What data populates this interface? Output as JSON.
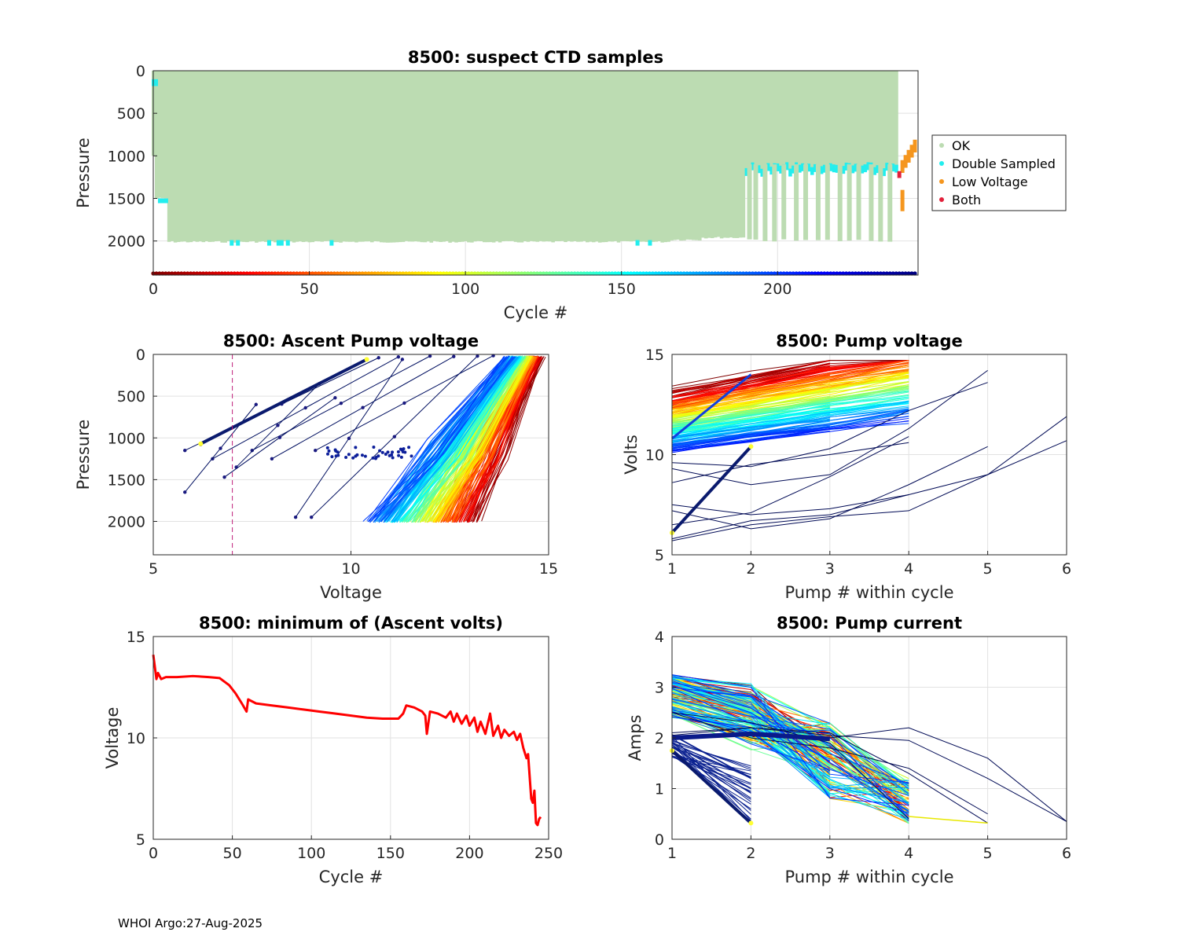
{
  "footer": "WHOI Argo:27-Aug-2025",
  "chart_data": [
    {
      "id": "ctd",
      "type": "scatter",
      "title": "8500: suspect CTD samples",
      "xlabel": "Cycle #",
      "ylabel": "Pressure",
      "xlim": [
        0,
        245
      ],
      "ylim": [
        2400,
        0
      ],
      "xticks": [
        0,
        50,
        100,
        150,
        200
      ],
      "yticks": [
        0,
        500,
        1000,
        1500,
        2000
      ],
      "legend": {
        "placement": "outside-right",
        "entries": [
          {
            "label": "OK",
            "color": "#bcdcb2"
          },
          {
            "label": "Double Sampled",
            "color": "#22eeee"
          },
          {
            "label": "Low Voltage",
            "color": "#f5961e"
          },
          {
            "label": "Both",
            "color": "#e2203a"
          }
        ]
      },
      "profile_depth": [
        {
          "from": 1,
          "to": 4,
          "value": 1500
        },
        {
          "from": 5,
          "to": 165,
          "value": 2010
        },
        {
          "from": 166,
          "to": 175,
          "value": 1985
        },
        {
          "from": 176,
          "to": 189,
          "value": 1960
        }
      ],
      "park_depth_after_190": 1150,
      "deep_profile_cycles": [
        191,
        193,
        196,
        199,
        202,
        206,
        209,
        213,
        216,
        220,
        223,
        226,
        230,
        233,
        236
      ],
      "low_voltage_cycles": [
        240,
        241,
        242,
        243,
        244
      ],
      "both_cycle": 239
    },
    {
      "id": "ascent",
      "type": "line",
      "title": "8500: Ascent Pump voltage",
      "xlabel": "Voltage",
      "ylabel": "Pressure",
      "xlim": [
        5,
        15
      ],
      "ylim": [
        2400,
        0
      ],
      "xticks": [
        5,
        10,
        15
      ],
      "yticks": [
        0,
        500,
        1000,
        1500,
        2000
      ],
      "low_voltage_threshold": 7,
      "bottom_voltage_range": [
        10.5,
        13.1
      ],
      "top_voltage_range": [
        14.0,
        14.8
      ]
    },
    {
      "id": "pumpv",
      "type": "line",
      "title": "8500: Pump voltage",
      "xlabel": "Pump # within cycle",
      "ylabel": "Volts",
      "xlim": [
        1,
        6
      ],
      "ylim": [
        5,
        15
      ],
      "xticks": [
        1,
        2,
        3,
        4,
        5,
        6
      ],
      "yticks": [
        5,
        10,
        15
      ]
    },
    {
      "id": "minv",
      "type": "line",
      "title": "8500: minimum of (Ascent volts)",
      "xlabel": "Cycle #",
      "ylabel": "Voltage",
      "xlim": [
        0,
        250
      ],
      "ylim": [
        5,
        15
      ],
      "xticks": [
        0,
        50,
        100,
        150,
        200,
        250
      ],
      "yticks": [
        5,
        10,
        15
      ],
      "series": [
        {
          "name": "minimum ascent voltage",
          "color": "#ff0000",
          "points": [
            [
              0,
              14.1
            ],
            [
              2,
              12.9
            ],
            [
              3,
              13.2
            ],
            [
              5,
              12.9
            ],
            [
              8,
              13.0
            ],
            [
              15,
              13.0
            ],
            [
              25,
              13.05
            ],
            [
              35,
              13.0
            ],
            [
              42,
              12.95
            ],
            [
              48,
              12.6
            ],
            [
              52,
              12.2
            ],
            [
              56,
              11.7
            ],
            [
              59,
              11.3
            ],
            [
              60,
              11.9
            ],
            [
              65,
              11.7
            ],
            [
              75,
              11.6
            ],
            [
              85,
              11.5
            ],
            [
              95,
              11.4
            ],
            [
              105,
              11.3
            ],
            [
              115,
              11.2
            ],
            [
              125,
              11.1
            ],
            [
              135,
              11.0
            ],
            [
              145,
              10.95
            ],
            [
              155,
              10.95
            ],
            [
              158,
              11.2
            ],
            [
              160,
              11.6
            ],
            [
              165,
              11.5
            ],
            [
              170,
              11.3
            ],
            [
              172,
              11.1
            ],
            [
              173,
              10.2
            ],
            [
              175,
              11.3
            ],
            [
              180,
              11.2
            ],
            [
              185,
              11.0
            ],
            [
              188,
              11.3
            ],
            [
              190,
              10.8
            ],
            [
              192,
              11.2
            ],
            [
              195,
              10.7
            ],
            [
              198,
              11.1
            ],
            [
              200,
              10.6
            ],
            [
              203,
              11.0
            ],
            [
              205,
              10.3
            ],
            [
              207,
              10.8
            ],
            [
              210,
              10.2
            ],
            [
              213,
              11.2
            ],
            [
              215,
              10.1
            ],
            [
              218,
              10.6
            ],
            [
              220,
              10.0
            ],
            [
              222,
              10.4
            ],
            [
              225,
              10.1
            ],
            [
              228,
              10.3
            ],
            [
              230,
              9.9
            ],
            [
              232,
              10.2
            ],
            [
              234,
              9.5
            ],
            [
              236,
              9.0
            ],
            [
              237,
              9.2
            ],
            [
              238,
              8.1
            ],
            [
              239,
              7.0
            ],
            [
              240,
              6.8
            ],
            [
              241,
              7.4
            ],
            [
              242,
              5.8
            ],
            [
              243,
              5.7
            ],
            [
              244,
              6.0
            ],
            [
              245,
              6.1
            ]
          ]
        }
      ]
    },
    {
      "id": "pumpc",
      "type": "line",
      "title": "8500: Pump current",
      "xlabel": "Pump # within cycle",
      "ylabel": "Amps",
      "xlim": [
        1,
        6
      ],
      "ylim": [
        0,
        4
      ],
      "xticks": [
        1,
        2,
        3,
        4,
        5,
        6
      ],
      "yticks": [
        0,
        1,
        2,
        3,
        4
      ]
    }
  ]
}
